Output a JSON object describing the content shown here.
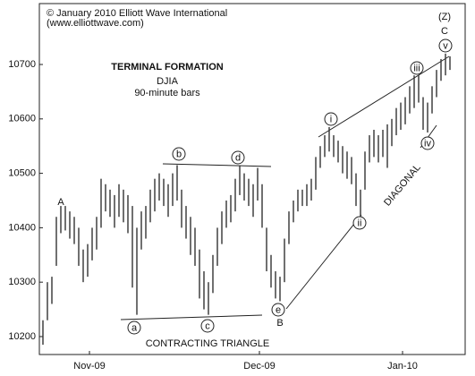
{
  "chart_data": {
    "type": "range-bar",
    "title": "TERMINAL FORMATION",
    "subtitle": "DJIA",
    "note": "90-minute bars",
    "source": [
      "© January 2010 Elliott Wave International",
      "(www.elliottwave.com)"
    ],
    "annotations": [
      "A",
      "B",
      "(Z)",
      "C",
      "a",
      "b",
      "c",
      "d",
      "e",
      "i",
      "ii",
      "iii",
      "iv",
      "v",
      "CONTRACTING TRIANGLE",
      "DIAGONAL"
    ],
    "color": "#333333",
    "high": [
      10230,
      10300,
      10310,
      10420,
      10440,
      10440,
      10430,
      10420,
      10400,
      10360,
      10370,
      10400,
      10420,
      10490,
      10480,
      10470,
      10460,
      10480,
      10470,
      10460,
      10440,
      10400,
      10430,
      10440,
      10470,
      10490,
      10500,
      10490,
      10480,
      10500,
      10515,
      10470,
      10440,
      10420,
      10400,
      10360,
      10320,
      10300,
      10350,
      10400,
      10430,
      10450,
      10460,
      10490,
      10515,
      10500,
      10490,
      10480,
      10510,
      10480,
      10400,
      10350,
      10320,
      10310,
      10380,
      10430,
      10450,
      10470,
      10470,
      10480,
      10490,
      10530,
      10550,
      10570,
      10585,
      10570,
      10560,
      10550,
      10540,
      10530,
      10500,
      10470,
      10540,
      10570,
      10580,
      10570,
      10580,
      10590,
      10600,
      10620,
      10630,
      10640,
      10660,
      10680,
      10680,
      10640,
      10630,
      10660,
      10690,
      10710,
      10720,
      10715
    ],
    "low": [
      10185,
      10230,
      10260,
      10330,
      10390,
      10395,
      10380,
      10370,
      10330,
      10300,
      10310,
      10340,
      10360,
      10400,
      10430,
      10420,
      10400,
      10420,
      10410,
      10390,
      10290,
      10240,
      10360,
      10380,
      10410,
      10430,
      10450,
      10440,
      10420,
      10440,
      10450,
      10400,
      10380,
      10350,
      10330,
      10270,
      10250,
      10240,
      10280,
      10330,
      10370,
      10400,
      10410,
      10430,
      10460,
      10450,
      10440,
      10420,
      10450,
      10400,
      10320,
      10290,
      10270,
      10265,
      10300,
      10370,
      10410,
      10430,
      10440,
      10440,
      10450,
      10470,
      10510,
      10530,
      10540,
      10530,
      10520,
      10500,
      10490,
      10480,
      10440,
      10420,
      10470,
      10520,
      10530,
      10520,
      10530,
      10510,
      10550,
      10570,
      10580,
      10590,
      10610,
      10620,
      10630,
      10580,
      10575,
      10610,
      10640,
      10670,
      10680,
      10690
    ],
    "xlim": [
      0,
      91
    ],
    "xticks": [
      {
        "value": 10.4,
        "label": "Nov-09"
      },
      {
        "value": 48.4,
        "label": "Dec-09"
      },
      {
        "value": 80.4,
        "label": "Jan-10"
      }
    ],
    "ylim": [
      10170,
      10805
    ],
    "yticks": [
      10200,
      10300,
      10400,
      10500,
      10600,
      10700
    ],
    "grid": false
  }
}
